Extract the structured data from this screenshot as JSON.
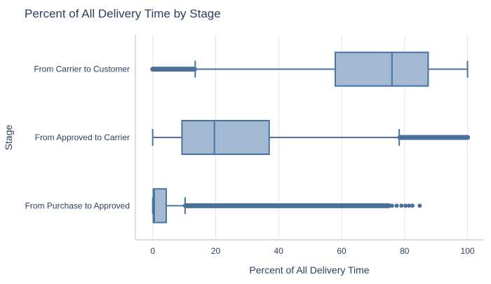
{
  "chart_data": {
    "type": "box",
    "orientation": "horizontal",
    "title": "Percent of All Delivery Time by Stage",
    "xlabel": "Percent of All Delivery Time",
    "ylabel": "Stage",
    "xlim": [
      -5.5,
      105
    ],
    "x_ticks": [
      0,
      20,
      40,
      60,
      80,
      100
    ],
    "x_tick_labels": [
      "0",
      "20",
      "40",
      "60",
      "80",
      "100"
    ],
    "grid": true,
    "legend": "none",
    "colors": {
      "box_fill": "#a3b8d3",
      "box_line": "#4a74a0",
      "outlier": "#4a6f98",
      "grid": "#e6e6e6",
      "axis": "#bdbdbd",
      "text": "#2a3f5f"
    },
    "categories": [
      "From Carrier to Customer",
      "From Approved to Carrier",
      "From Purchase to Approved"
    ],
    "boxes": [
      {
        "category": "From Carrier to Customer",
        "whisker_low": 13.5,
        "q1": 58,
        "median": 76,
        "q3": 87.5,
        "whisker_high": 100,
        "outlier_ranges": [
          [
            0,
            13.3
          ]
        ],
        "outliers": []
      },
      {
        "category": "From Approved to Carrier",
        "whisker_low": 0,
        "q1": 9.3,
        "median": 19.6,
        "q3": 37,
        "whisker_high": 78.3,
        "outlier_ranges": [
          [
            78.5,
            100
          ]
        ],
        "outliers": []
      },
      {
        "category": "From Purchase to Approved",
        "whisker_low": 0,
        "q1": 0.2,
        "median": 0.5,
        "q3": 4.3,
        "whisker_high": 10.3,
        "outlier_ranges": [
          [
            10.4,
            75
          ]
        ],
        "outliers": [
          76,
          77.5,
          79,
          80.3,
          81.4,
          82.5,
          84.8
        ]
      }
    ]
  }
}
